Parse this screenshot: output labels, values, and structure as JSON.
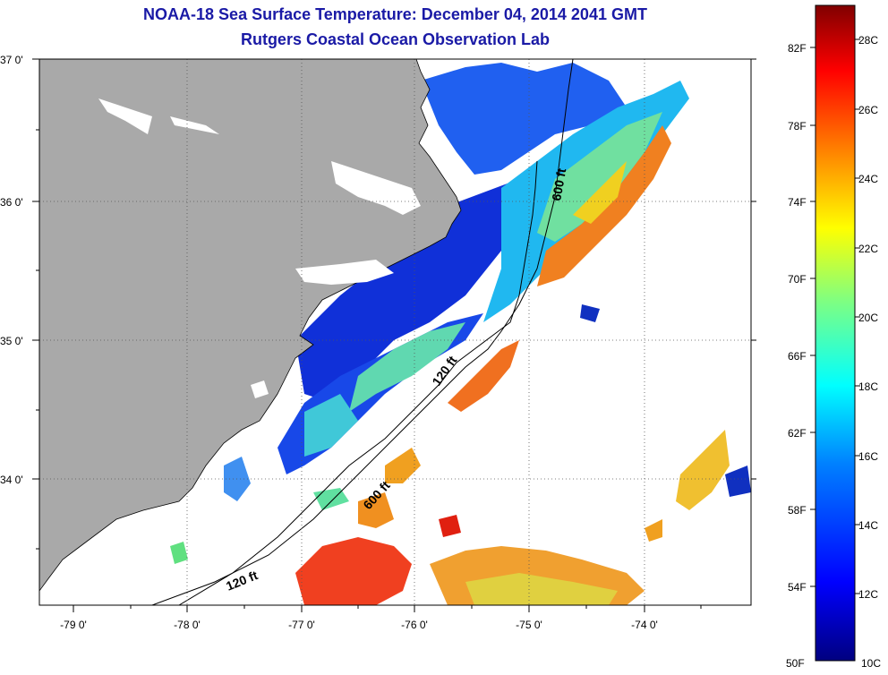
{
  "title": {
    "line1": "NOAA-18 Sea Surface Temperature:  December 04, 2014 2041 GMT",
    "line2": "Rutgers Coastal Ocean Observation Lab"
  },
  "map": {
    "lat_labels": [
      "37 0'",
      "36 0'",
      "35 0'",
      "34 0'"
    ],
    "lon_labels": [
      "-79 0'",
      "-78 0'",
      "-77 0'",
      "-76 0'",
      "-75 0'",
      "-74 0'"
    ],
    "isobaths": [
      "600 ft",
      "120 ft",
      "600 ft",
      "120 ft"
    ],
    "land_color": "#a9a9a9",
    "nodata_color": "#ffffff"
  },
  "colorbar": {
    "fahrenheit": [
      "82F",
      "78F",
      "74F",
      "70F",
      "66F",
      "62F",
      "58F",
      "54F",
      "50F"
    ],
    "celsius": [
      "28C",
      "26C",
      "24C",
      "22C",
      "20C",
      "18C",
      "16C",
      "14C",
      "12C",
      "10C"
    ],
    "colors": [
      "#000080",
      "#0000ff",
      "#0080ff",
      "#00ffff",
      "#80ff80",
      "#ffff00",
      "#ff8000",
      "#ff0000",
      "#800000"
    ]
  }
}
